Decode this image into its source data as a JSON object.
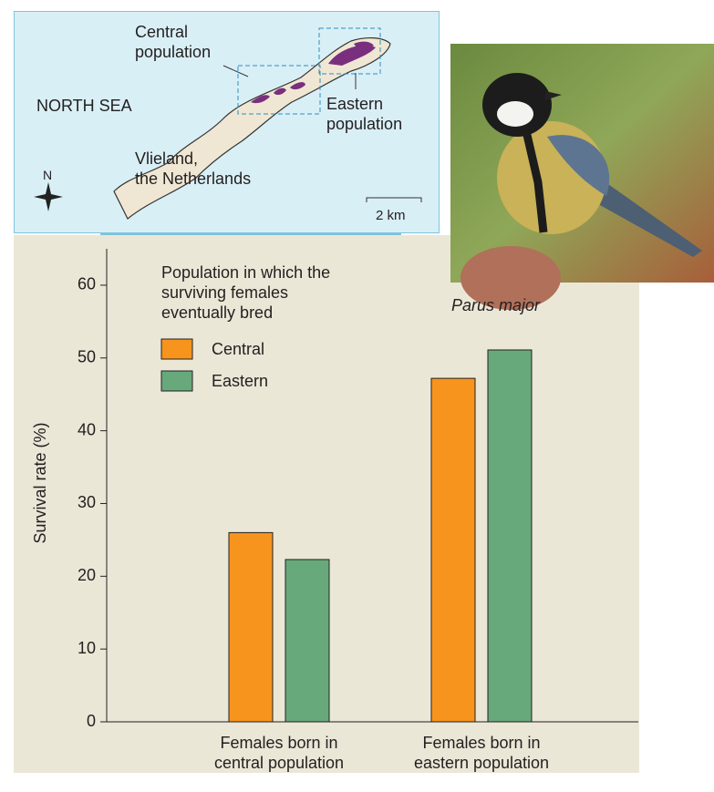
{
  "map": {
    "central_label": [
      "Central",
      "population"
    ],
    "sea_label": "NORTH SEA",
    "eastern_label": [
      "Eastern",
      "population"
    ],
    "place_label": [
      "Vlieland,",
      "the Netherlands"
    ],
    "compass": "N",
    "scale": "2 km"
  },
  "chart_data": {
    "type": "bar",
    "categories": [
      "Females born in central population",
      "Females born in eastern population"
    ],
    "y_label": "Survival rate (%)",
    "legend_title": "Population in which the surviving females eventually bred",
    "annotation": "Parus major",
    "series": [
      {
        "name": "Central",
        "color": "#f7941d",
        "values": [
          26,
          47.2
        ]
      },
      {
        "name": "Eastern",
        "color": "#67a97b",
        "values": [
          22.3,
          51.1
        ]
      }
    ],
    "ylim": [
      0,
      65
    ],
    "yticks": [
      0,
      10,
      20,
      30,
      40,
      50,
      60
    ],
    "grid": false,
    "legend": "upper left"
  }
}
